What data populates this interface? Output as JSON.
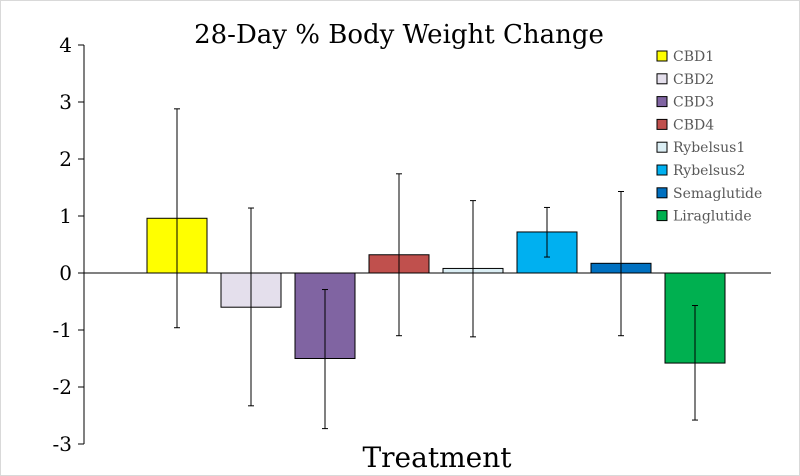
{
  "chart_data": {
    "type": "bar",
    "title": "28-Day % Body Weight Change",
    "xlabel": "Treatment",
    "ylabel": "",
    "ylim": [
      -3,
      4
    ],
    "yticks": [
      4,
      3,
      2,
      1,
      0,
      -1,
      -2,
      -3
    ],
    "categories": [
      "CBD1",
      "CBD2",
      "CBD3",
      "CBD4",
      "Rybelsus1",
      "Rybelsus2",
      "Semaglutide",
      "Liraglutide"
    ],
    "values": [
      0.96,
      -0.6,
      -1.5,
      0.32,
      0.08,
      0.72,
      0.17,
      -1.58
    ],
    "error_low": [
      -0.96,
      -2.33,
      -2.73,
      -1.1,
      -1.12,
      0.28,
      -1.1,
      -2.58
    ],
    "error_high": [
      2.88,
      1.14,
      -0.29,
      1.74,
      1.27,
      1.15,
      1.43,
      -0.57
    ],
    "colors": [
      "#ffff00",
      "#e4dfec",
      "#8064a2",
      "#c0504d",
      "#dbeef4",
      "#00b0f0",
      "#0070c0",
      "#00b050"
    ],
    "legend_position": "top-right",
    "grid": false
  }
}
